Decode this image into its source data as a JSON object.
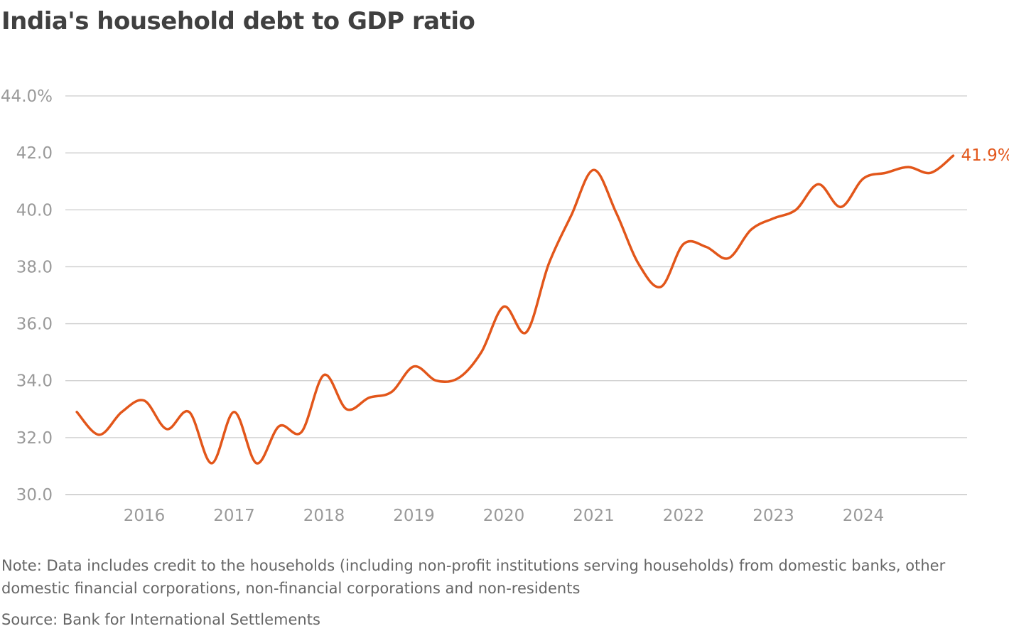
{
  "title": "India's household debt to GDP ratio",
  "note": "Note: Data includes credit to the households (including non-profit institutions serving households) from domestic banks, other domestic financial corporations, non-financial corporations and non-residents",
  "source": "Source: Bank for International Settlements",
  "colors": {
    "line": "#e2561a",
    "grid": "#cccccc",
    "tick": "#9a9a9a"
  },
  "chart_data": {
    "type": "line",
    "title": "India's household debt to GDP ratio",
    "xlabel": "",
    "ylabel": "",
    "ylim": [
      30,
      44
    ],
    "xlim": [
      2015.0,
      2025.1
    ],
    "grid": true,
    "y_ticks": [
      {
        "value": 30,
        "label": "30.0"
      },
      {
        "value": 32,
        "label": "32.0"
      },
      {
        "value": 34,
        "label": "34.0"
      },
      {
        "value": 36,
        "label": "36.0"
      },
      {
        "value": 38,
        "label": "38.0"
      },
      {
        "value": 40,
        "label": "40.0"
      },
      {
        "value": 42,
        "label": "42.0"
      },
      {
        "value": 44,
        "label": "44.0%"
      }
    ],
    "x_ticks": [
      {
        "value": 2016,
        "label": "2016"
      },
      {
        "value": 2017,
        "label": "2017"
      },
      {
        "value": 2018,
        "label": "2018"
      },
      {
        "value": 2019,
        "label": "2019"
      },
      {
        "value": 2020,
        "label": "2020"
      },
      {
        "value": 2021,
        "label": "2021"
      },
      {
        "value": 2022,
        "label": "2022"
      },
      {
        "value": 2023,
        "label": "2023"
      },
      {
        "value": 2024,
        "label": "2024"
      }
    ],
    "series": [
      {
        "name": "Household debt to GDP",
        "end_label": "41.9%",
        "x": [
          2015.25,
          2015.5,
          2015.75,
          2016.0,
          2016.25,
          2016.5,
          2016.75,
          2017.0,
          2017.25,
          2017.5,
          2017.75,
          2018.0,
          2018.25,
          2018.5,
          2018.75,
          2019.0,
          2019.25,
          2019.5,
          2019.75,
          2020.0,
          2020.25,
          2020.5,
          2020.75,
          2021.0,
          2021.25,
          2021.5,
          2021.75,
          2022.0,
          2022.25,
          2022.5,
          2022.75,
          2023.0,
          2023.25,
          2023.5,
          2023.75,
          2024.0,
          2024.25,
          2024.5,
          2024.75,
          2025.0
        ],
        "values": [
          32.9,
          32.1,
          32.9,
          33.3,
          32.3,
          32.9,
          31.1,
          32.9,
          31.1,
          32.4,
          32.2,
          34.2,
          33.0,
          33.4,
          33.6,
          34.5,
          34.0,
          34.1,
          35.0,
          36.6,
          35.7,
          38.1,
          39.8,
          41.4,
          39.9,
          38.1,
          37.3,
          38.8,
          38.7,
          38.3,
          39.3,
          39.7,
          40.0,
          40.9,
          40.1,
          41.1,
          41.3,
          41.5,
          41.3,
          41.9
        ]
      }
    ]
  }
}
